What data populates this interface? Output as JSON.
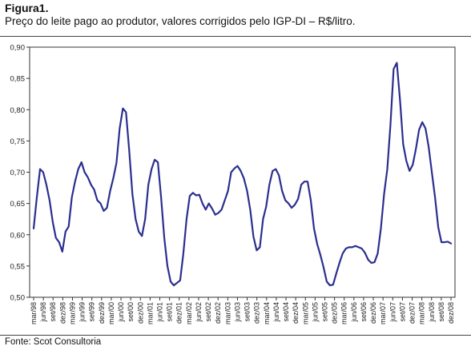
{
  "figure": {
    "title": "Figura1.",
    "subtitle": "Preço do leite pago ao produtor, valores corrigidos pelo IGP-DI – R$/litro.",
    "source": "Fonte: Scot Consultoria"
  },
  "chart_data": {
    "type": "line",
    "title": "",
    "xlabel": "",
    "ylabel": "",
    "ylim": [
      0.5,
      0.9
    ],
    "yticks": [
      "0,50",
      "0,55",
      "0,60",
      "0,65",
      "0,70",
      "0,75",
      "0,80",
      "0,85",
      "0,90"
    ],
    "grid": false,
    "line_color": "#2b2f8f",
    "x_tick_labels": [
      "mar/98",
      "jun/98",
      "set/98",
      "dez/98",
      "mar/99",
      "jun/99",
      "set/99",
      "dez/99",
      "mar/00",
      "jun/00",
      "set/00",
      "dez/00",
      "mar/01",
      "jun/01",
      "set/01",
      "dez/01",
      "mar/02",
      "jun/02",
      "set/02",
      "dez/02",
      "mar/03",
      "jun/03",
      "set/03",
      "dez/03",
      "mar/04",
      "jun/04",
      "set/04",
      "dez/04",
      "mar/05",
      "jun/05",
      "set/05",
      "dez/05",
      "mar/06",
      "jun/06",
      "set/06",
      "dez/06",
      "mar/07",
      "jun/07",
      "set/07",
      "dez/07",
      "mar/08",
      "jun/08",
      "set/08",
      "dez/08"
    ],
    "series": [
      {
        "values": [
          0.61,
          0.66,
          0.705,
          0.7,
          0.68,
          0.655,
          0.62,
          0.595,
          0.588,
          0.573,
          0.605,
          0.613,
          0.66,
          0.685,
          0.705,
          0.716,
          0.7,
          0.692,
          0.68,
          0.672,
          0.655,
          0.65,
          0.638,
          0.643,
          0.67,
          0.69,
          0.715,
          0.77,
          0.802,
          0.796,
          0.735,
          0.665,
          0.625,
          0.605,
          0.598,
          0.625,
          0.68,
          0.705,
          0.72,
          0.716,
          0.66,
          0.595,
          0.55,
          0.525,
          0.519,
          0.523,
          0.527,
          0.57,
          0.625,
          0.662,
          0.667,
          0.663,
          0.664,
          0.65,
          0.64,
          0.65,
          0.642,
          0.632,
          0.635,
          0.64,
          0.655,
          0.67,
          0.7,
          0.706,
          0.71,
          0.702,
          0.69,
          0.67,
          0.64,
          0.597,
          0.575,
          0.58,
          0.625,
          0.645,
          0.68,
          0.702,
          0.705,
          0.695,
          0.67,
          0.655,
          0.65,
          0.643,
          0.648,
          0.657,
          0.68,
          0.685,
          0.685,
          0.655,
          0.61,
          0.585,
          0.568,
          0.548,
          0.525,
          0.519,
          0.52,
          0.538,
          0.555,
          0.57,
          0.578,
          0.58,
          0.58,
          0.582,
          0.58,
          0.578,
          0.571,
          0.56,
          0.555,
          0.556,
          0.57,
          0.61,
          0.665,
          0.705,
          0.775,
          0.865,
          0.875,
          0.815,
          0.745,
          0.718,
          0.702,
          0.712,
          0.738,
          0.768,
          0.78,
          0.77,
          0.74,
          0.7,
          0.66,
          0.612,
          0.588,
          0.588,
          0.589,
          0.586
        ]
      }
    ]
  }
}
